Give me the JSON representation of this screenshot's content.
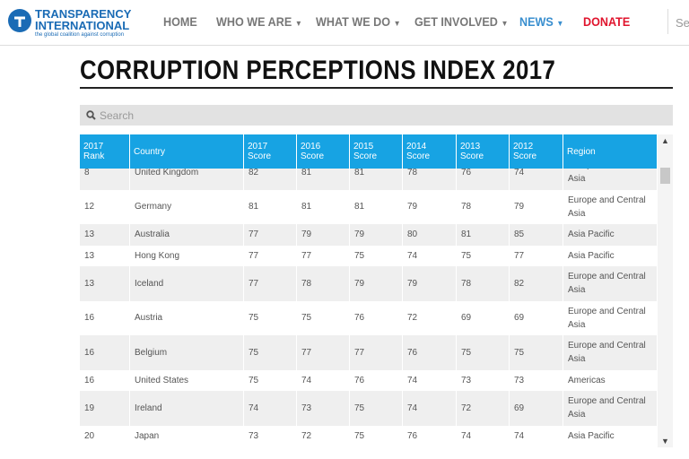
{
  "header": {
    "logo": {
      "line1": "TRANSPARENCY",
      "line2": "INTERNATIONAL",
      "tagline": "the global coalition against corruption"
    },
    "nav": [
      "HOME",
      "WHO WE ARE",
      "WHAT WE DO",
      "GET INVOLVED",
      "NEWS",
      "DONATE"
    ],
    "search": "Se"
  },
  "title": "CORRUPTION PERCEPTIONS INDEX 2017",
  "search_placeholder": "Search",
  "table": {
    "columns": [
      "2017 Rank",
      "Country",
      "2017 Score",
      "2016 Score",
      "2015 Score",
      "2014 Score",
      "2013 Score",
      "2012 Score",
      "Region"
    ],
    "rows": [
      [
        "8",
        "United Kingdom",
        "82",
        "81",
        "81",
        "78",
        "76",
        "74",
        "Europe and Central Asia"
      ],
      [
        "12",
        "Germany",
        "81",
        "81",
        "81",
        "79",
        "78",
        "79",
        "Europe and Central Asia"
      ],
      [
        "13",
        "Australia",
        "77",
        "79",
        "79",
        "80",
        "81",
        "85",
        "Asia Pacific"
      ],
      [
        "13",
        "Hong Kong",
        "77",
        "77",
        "75",
        "74",
        "75",
        "77",
        "Asia Pacific"
      ],
      [
        "13",
        "Iceland",
        "77",
        "78",
        "79",
        "79",
        "78",
        "82",
        "Europe and Central Asia"
      ],
      [
        "16",
        "Austria",
        "75",
        "75",
        "76",
        "72",
        "69",
        "69",
        "Europe and Central Asia"
      ],
      [
        "16",
        "Belgium",
        "75",
        "77",
        "77",
        "76",
        "75",
        "75",
        "Europe and Central Asia"
      ],
      [
        "16",
        "United States",
        "75",
        "74",
        "76",
        "74",
        "73",
        "73",
        "Americas"
      ],
      [
        "19",
        "Ireland",
        "74",
        "73",
        "75",
        "74",
        "72",
        "69",
        "Europe and Central Asia"
      ],
      [
        "20",
        "Japan",
        "73",
        "72",
        "75",
        "76",
        "74",
        "74",
        "Asia Pacific"
      ]
    ]
  }
}
